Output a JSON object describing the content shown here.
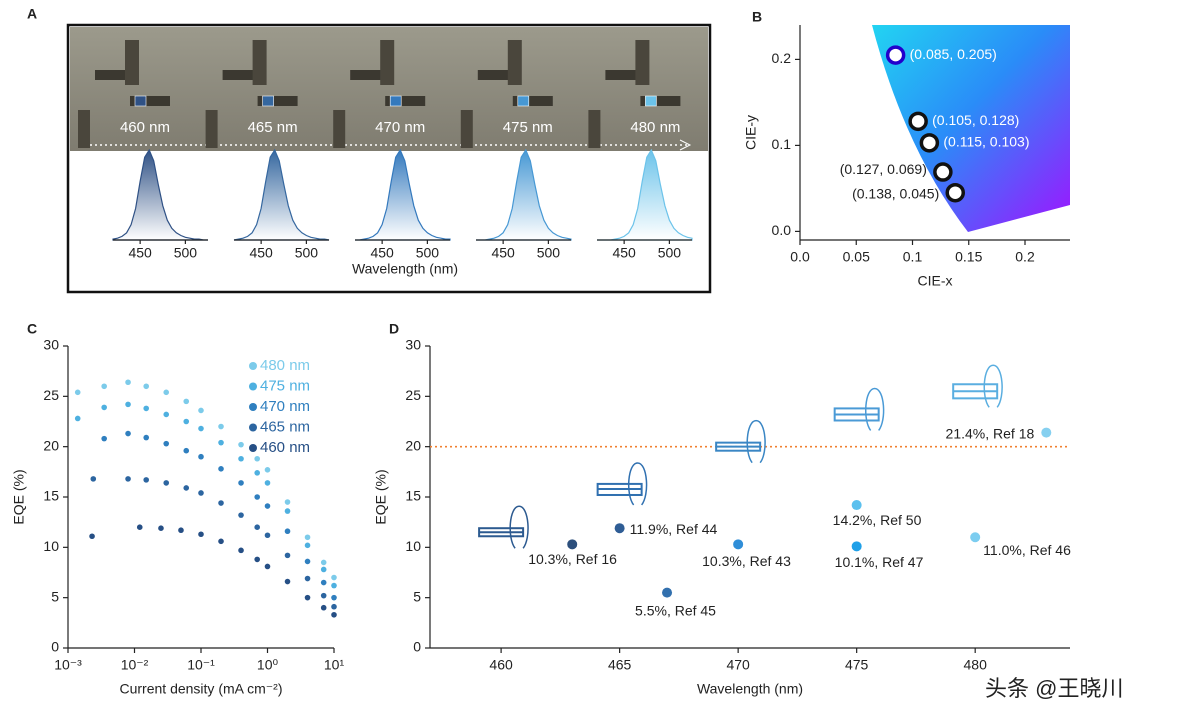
{
  "chart_data": [
    {
      "type": "spectra",
      "label": "A",
      "xlabel": "Wavelength (nm)",
      "x": [
        420,
        425,
        430,
        435,
        440,
        445,
        450,
        455,
        460,
        465,
        470,
        475,
        480,
        485,
        490,
        495,
        500,
        505,
        510,
        515,
        520,
        525
      ],
      "xlim": [
        420,
        525
      ],
      "xticks": [
        450,
        500
      ],
      "ylim": [
        0,
        1
      ],
      "series": [
        {
          "name": "460 nm",
          "color": "#2f5185",
          "values": [
            0.01,
            0.02,
            0.04,
            0.08,
            0.17,
            0.35,
            0.65,
            0.92,
            1,
            0.88,
            0.62,
            0.38,
            0.22,
            0.13,
            0.08,
            0.05,
            0.03,
            0.02,
            0.01,
            0.01,
            0,
            0
          ]
        },
        {
          "name": "465 nm",
          "color": "#35679f",
          "values": [
            0,
            0.01,
            0.02,
            0.04,
            0.08,
            0.17,
            0.35,
            0.65,
            0.92,
            1,
            0.88,
            0.62,
            0.38,
            0.22,
            0.13,
            0.08,
            0.05,
            0.03,
            0.02,
            0.01,
            0.01,
            0
          ]
        },
        {
          "name": "470 nm",
          "color": "#3479bd",
          "values": [
            0,
            0,
            0.01,
            0.02,
            0.04,
            0.08,
            0.17,
            0.35,
            0.65,
            0.92,
            1,
            0.88,
            0.62,
            0.38,
            0.22,
            0.13,
            0.08,
            0.05,
            0.03,
            0.02,
            0.01,
            0.01
          ]
        },
        {
          "name": "475 nm",
          "color": "#4798d4",
          "values": [
            0,
            0,
            0,
            0.01,
            0.02,
            0.04,
            0.08,
            0.17,
            0.35,
            0.65,
            0.92,
            1,
            0.88,
            0.62,
            0.38,
            0.22,
            0.13,
            0.08,
            0.05,
            0.03,
            0.02,
            0.01
          ]
        },
        {
          "name": "480 nm",
          "color": "#6cc3ea",
          "values": [
            0,
            0,
            0,
            0,
            0.01,
            0.02,
            0.04,
            0.08,
            0.17,
            0.35,
            0.65,
            0.92,
            1,
            0.88,
            0.62,
            0.38,
            0.22,
            0.13,
            0.08,
            0.05,
            0.03,
            0.02
          ]
        }
      ]
    },
    {
      "type": "cie",
      "label": "B",
      "xlabel": "CIE-x",
      "ylabel": "CIE-y",
      "xlim": [
        0,
        0.24
      ],
      "ylim": [
        -0.01,
        0.24
      ],
      "xticks": [
        {
          "value": 0,
          "label": "0.0"
        },
        0.05,
        0.1,
        0.15,
        0.2
      ],
      "yticks": [
        {
          "value": 0,
          "label": "0.0"
        },
        0.1,
        0.2
      ],
      "x": [
        0.085,
        0.105,
        0.115,
        0.127,
        0.138
      ],
      "values": [
        0.205,
        0.128,
        0.103,
        0.069,
        0.045
      ],
      "value_labels": [
        "(0.085, 0.205)",
        "(0.105, 0.128)",
        "(0.115, 0.103)",
        "(0.127, 0.069)",
        "(0.138, 0.045)"
      ]
    },
    {
      "type": "scatter",
      "label": "C",
      "xlabel": "Current density (mA cm⁻²)",
      "ylabel": "EQE (%)",
      "log_x": true,
      "xlim": [
        0.001,
        10
      ],
      "ylim": [
        0,
        30
      ],
      "xticks": [
        {
          "value": 0.001,
          "label": "10⁻³"
        },
        {
          "value": 0.01,
          "label": "10⁻²"
        },
        {
          "value": 0.1,
          "label": "10⁻¹"
        },
        {
          "value": 1,
          "label": "10⁰"
        },
        {
          "value": 10,
          "label": "10¹"
        }
      ],
      "yticks": [
        0,
        5,
        10,
        15,
        20,
        25,
        30
      ],
      "series": [
        {
          "name": "480 nm",
          "color": "#7ccbea",
          "x": [
            0.0014,
            0.0035,
            0.008,
            0.015,
            0.03,
            0.06,
            0.1,
            0.2,
            0.4,
            0.7,
            1,
            2,
            4,
            7,
            10
          ],
          "values": [
            25.4,
            26.0,
            26.4,
            26.0,
            25.4,
            24.5,
            23.6,
            22.0,
            20.2,
            18.8,
            17.7,
            14.5,
            11.0,
            8.5,
            7.0
          ]
        },
        {
          "name": "475 nm",
          "color": "#4eb0e0",
          "x": [
            0.0014,
            0.0035,
            0.008,
            0.015,
            0.03,
            0.06,
            0.1,
            0.2,
            0.4,
            0.7,
            1,
            2,
            4,
            7,
            10
          ],
          "values": [
            22.8,
            23.9,
            24.2,
            23.8,
            23.2,
            22.5,
            21.8,
            20.4,
            18.8,
            17.4,
            16.4,
            13.6,
            10.2,
            7.8,
            6.2
          ]
        },
        {
          "name": "470 nm",
          "color": "#2f7fbf",
          "x": [
            0.0035,
            0.008,
            0.015,
            0.03,
            0.06,
            0.1,
            0.2,
            0.4,
            0.7,
            1,
            2,
            4,
            7,
            10
          ],
          "values": [
            20.8,
            21.3,
            20.9,
            20.3,
            19.6,
            19.0,
            17.8,
            16.4,
            15.0,
            14.1,
            11.6,
            8.6,
            6.5,
            5.0
          ]
        },
        {
          "name": "465 nm",
          "color": "#2c65a0",
          "x": [
            0.0024,
            0.008,
            0.015,
            0.03,
            0.06,
            0.1,
            0.2,
            0.4,
            0.7,
            1,
            2,
            4,
            7,
            10
          ],
          "values": [
            16.8,
            16.8,
            16.7,
            16.4,
            15.9,
            15.4,
            14.4,
            13.2,
            12.0,
            11.2,
            9.2,
            6.9,
            5.2,
            4.1
          ]
        },
        {
          "name": "460 nm",
          "color": "#264f85",
          "x": [
            0.0023,
            0.012,
            0.025,
            0.05,
            0.1,
            0.2,
            0.4,
            0.7,
            1,
            2,
            4,
            7,
            10
          ],
          "values": [
            11.1,
            12.0,
            11.9,
            11.7,
            11.3,
            10.6,
            9.7,
            8.8,
            8.1,
            6.6,
            5.0,
            4.0,
            3.3
          ]
        }
      ]
    },
    {
      "type": "scatter",
      "label": "D",
      "xlabel": "Wavelength (nm)",
      "ylabel": "EQE (%)",
      "xlim": [
        457,
        484
      ],
      "ylim": [
        0,
        30
      ],
      "xticks": [
        460,
        465,
        470,
        475,
        480
      ],
      "yticks": [
        0,
        5,
        10,
        15,
        20,
        25,
        30
      ],
      "hline": 20,
      "hline_color": "#f08030",
      "series": [
        {
          "x": [
            460,
            465,
            470,
            475,
            480
          ],
          "values": [
            11.5,
            15.8,
            20.0,
            23.2,
            25.5
          ],
          "low": [
            11.1,
            15.2,
            19.6,
            22.6,
            24.8
          ],
          "high": [
            11.9,
            16.3,
            20.4,
            23.8,
            26.2
          ],
          "colors": [
            "#2c5a90",
            "#3070b0",
            "#3a86c4",
            "#4a9ad6",
            "#5aaee0"
          ]
        },
        {
          "x": [
            463,
            465,
            467,
            470,
            475,
            475,
            480,
            483
          ],
          "values": [
            10.3,
            11.9,
            5.5,
            10.3,
            14.2,
            10.1,
            11.0,
            21.4
          ],
          "value_labels": [
            "10.3%, Ref 16",
            "11.9%, Ref 44",
            "5.5%, Ref 45",
            "10.3%, Ref 43",
            "14.2%, Ref 50",
            "10.1%, Ref 47",
            "11.0%, Ref 46",
            "21.4%, Ref 18"
          ],
          "colors": [
            "#2c4f7c",
            "#2f5d95",
            "#3270ae",
            "#2f8ed8",
            "#5bc0ee",
            "#1fa0e8",
            "#7ccdf0",
            "#86d0f0"
          ]
        }
      ]
    }
  ],
  "watermark": "头条 @王晓川"
}
